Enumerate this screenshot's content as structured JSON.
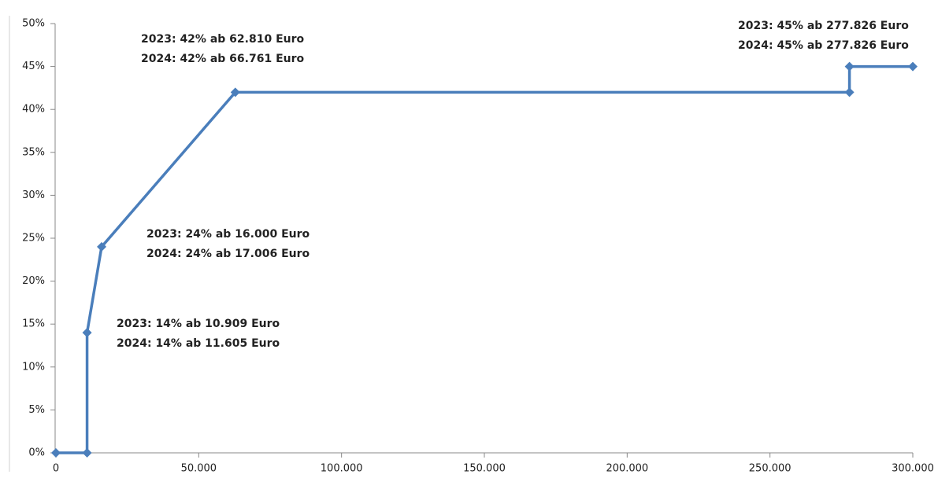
{
  "chart_data": {
    "type": "line",
    "x": [
      0,
      10909,
      10909,
      16000,
      62810,
      277826,
      277826,
      300000
    ],
    "series": [
      {
        "color": "#4a7ebb",
        "values": [
          0,
          0,
          14,
          24,
          42,
          42,
          45,
          45
        ]
      }
    ],
    "xlim": [
      0,
      300000
    ],
    "xticks": [
      0,
      {
        "value": 50000,
        "label": "50.000"
      },
      {
        "value": 100000,
        "label": "100.000"
      },
      {
        "value": 150000,
        "label": "150.000"
      },
      {
        "value": 200000,
        "label": "200.000"
      },
      {
        "value": 250000,
        "label": "250.000"
      },
      {
        "value": 300000,
        "label": "300.000"
      }
    ],
    "ylim": [
      0,
      50
    ],
    "yticks": [
      {
        "value": 0,
        "label": "0%"
      },
      {
        "value": 5,
        "label": "5%"
      },
      {
        "value": 10,
        "label": "10%"
      },
      {
        "value": 15,
        "label": "15%"
      },
      {
        "value": 20,
        "label": "20%"
      },
      {
        "value": 25,
        "label": "25%"
      },
      {
        "value": 30,
        "label": "30%"
      },
      {
        "value": 35,
        "label": "35%"
      },
      {
        "value": 40,
        "label": "40%"
      },
      {
        "value": 45,
        "label": "45%"
      },
      {
        "value": 50,
        "label": "50%"
      }
    ],
    "grid": false,
    "annotations": [
      [
        {
          "text": "2023: 42% ab 62.810  Euro",
          "color": "#1a1a1a"
        },
        {
          "text": "2024: 42% ab 66.761  Euro",
          "color": "#e03c31"
        }
      ],
      [
        {
          "text": "2023: 24% ab 16.000  Euro",
          "color": "#1a1a1a"
        },
        {
          "text": "2024: 24% ab 17.006  Euro",
          "color": "#e03c31"
        }
      ],
      [
        {
          "text": "2023: 14% ab 10.909  Euro",
          "color": "#1a1a1a"
        },
        {
          "text": "2024: 14% ab 11.605  Euro",
          "color": "#e03c31"
        }
      ],
      [
        {
          "text": "2023: 45% ab 277.826  Euro",
          "color": "#1a1a1a"
        },
        {
          "text": "2024: 45% ab 277.826  Euro",
          "color": "#e03c31"
        }
      ]
    ]
  }
}
